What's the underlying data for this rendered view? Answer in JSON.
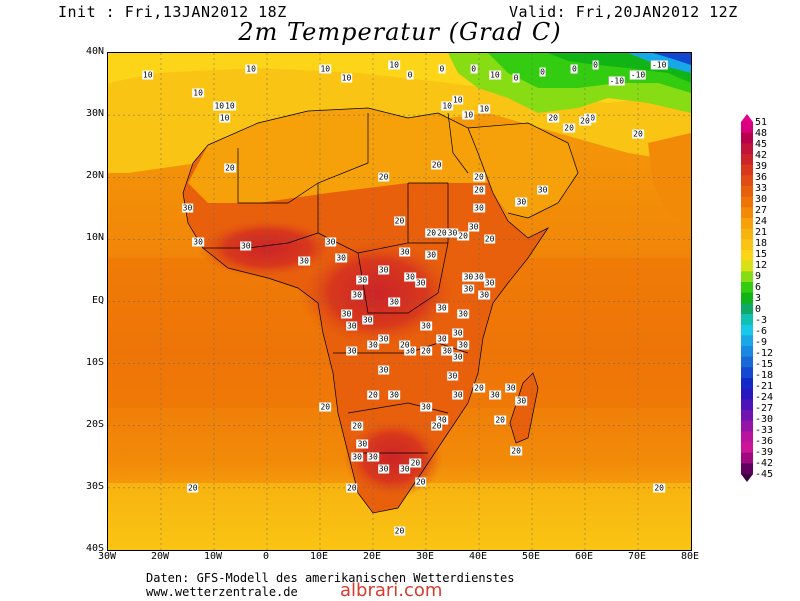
{
  "header": {
    "init": "Init : Fri,13JAN2012 18Z",
    "valid": "Valid: Fri,20JAN2012 12Z",
    "title": "2m Temperatur (Grad C)"
  },
  "axes": {
    "lat_labels": [
      "40N",
      "30N",
      "20N",
      "10N",
      "EQ",
      "10S",
      "20S",
      "30S",
      "40S"
    ],
    "lon_labels": [
      "30W",
      "20W",
      "10W",
      "0",
      "10E",
      "20E",
      "30E",
      "40E",
      "50E",
      "60E",
      "70E",
      "80E"
    ]
  },
  "colorbar": {
    "labels": [
      "51",
      "48",
      "45",
      "42",
      "39",
      "36",
      "33",
      "30",
      "27",
      "24",
      "21",
      "18",
      "15",
      "12",
      "9",
      "6",
      "3",
      "0",
      "-3",
      "-6",
      "-9",
      "-12",
      "-15",
      "-18",
      "-21",
      "-24",
      "-27",
      "-30",
      "-33",
      "-36",
      "-39",
      "-42",
      "-45"
    ],
    "colors": [
      "#d8007c",
      "#b8004c",
      "#c0143c",
      "#cc2428",
      "#d8381c",
      "#e04c14",
      "#e8600c",
      "#ee7408",
      "#f28a08",
      "#f6a00a",
      "#f8b40e",
      "#fac414",
      "#fcd418",
      "#d8e018",
      "#88dc14",
      "#34cc10",
      "#10b414",
      "#10a868",
      "#10c0b0",
      "#18c8e8",
      "#18a8e8",
      "#1888e0",
      "#1868d8",
      "#1448d0",
      "#1428c8",
      "#2818c0",
      "#4c14b8",
      "#7014b0",
      "#9414a8",
      "#b814a0",
      "#cc1498",
      "#a00880",
      "#600060"
    ]
  },
  "map_labels": [
    {
      "t": "10",
      "lon": -22.5,
      "lat": 36.5
    },
    {
      "t": "10",
      "lon": -3,
      "lat": 37.5
    },
    {
      "t": "10",
      "lon": 11,
      "lat": 37.5
    },
    {
      "t": "10",
      "lon": 15,
      "lat": 36
    },
    {
      "t": "10",
      "lon": -13,
      "lat": 33.5
    },
    {
      "t": "10",
      "lon": -7,
      "lat": 31.5
    },
    {
      "t": "10",
      "lon": -8,
      "lat": 29.5
    },
    {
      "t": "10",
      "lon": -9,
      "lat": 31.5
    },
    {
      "t": "10",
      "lon": 24,
      "lat": 38
    },
    {
      "t": "0",
      "lon": 27,
      "lat": 36.5
    },
    {
      "t": "0",
      "lon": 33,
      "lat": 37.5
    },
    {
      "t": "0",
      "lon": 39,
      "lat": 37.5
    },
    {
      "t": "10",
      "lon": 43,
      "lat": 36.5
    },
    {
      "t": "0",
      "lon": 47,
      "lat": 36
    },
    {
      "t": "0",
      "lon": 52,
      "lat": 37
    },
    {
      "t": "0",
      "lon": 58,
      "lat": 37.5
    },
    {
      "t": "0",
      "lon": 62,
      "lat": 38
    },
    {
      "t": "-10",
      "lon": 66,
      "lat": 35.5
    },
    {
      "t": "-10",
      "lon": 70,
      "lat": 36.5
    },
    {
      "t": "-10",
      "lon": 74,
      "lat": 38
    },
    {
      "t": "10",
      "lon": 34,
      "lat": 31.5
    },
    {
      "t": "10",
      "lon": 41,
      "lat": 31
    },
    {
      "t": "10",
      "lon": 36,
      "lat": 32.5
    },
    {
      "t": "10",
      "lon": 38,
      "lat": 30
    },
    {
      "t": "20",
      "lon": 54,
      "lat": 29.5
    },
    {
      "t": "10",
      "lon": 61,
      "lat": 29.5
    },
    {
      "t": "20",
      "lon": 57,
      "lat": 28
    },
    {
      "t": "20",
      "lon": 60,
      "lat": 29
    },
    {
      "t": "20",
      "lon": 70,
      "lat": 27
    },
    {
      "t": "20",
      "lon": 22,
      "lat": 20
    },
    {
      "t": "20",
      "lon": 32,
      "lat": 22
    },
    {
      "t": "20",
      "lon": 25,
      "lat": 13
    },
    {
      "t": "20",
      "lon": -7,
      "lat": 21.5
    },
    {
      "t": "30",
      "lon": -15,
      "lat": 15
    },
    {
      "t": "30",
      "lon": -13,
      "lat": 9.5
    },
    {
      "t": "30",
      "lon": -4,
      "lat": 9
    },
    {
      "t": "30",
      "lon": 12,
      "lat": 9.5
    },
    {
      "t": "30",
      "lon": 7,
      "lat": 6.5
    },
    {
      "t": "30",
      "lon": 14,
      "lat": 7
    },
    {
      "t": "30",
      "lon": 26,
      "lat": 8
    },
    {
      "t": "30",
      "lon": 22,
      "lat": 5
    },
    {
      "t": "30",
      "lon": 18,
      "lat": 3.5
    },
    {
      "t": "30",
      "lon": 31,
      "lat": 7.5
    },
    {
      "t": "20",
      "lon": 31,
      "lat": 11
    },
    {
      "t": "20",
      "lon": 33,
      "lat": 11
    },
    {
      "t": "30",
      "lon": 35,
      "lat": 11
    },
    {
      "t": "20",
      "lon": 37,
      "lat": 10.5
    },
    {
      "t": "30",
      "lon": 39,
      "lat": 12
    },
    {
      "t": "30",
      "lon": 40,
      "lat": 15
    },
    {
      "t": "20",
      "lon": 40,
      "lat": 18
    },
    {
      "t": "20",
      "lon": 40,
      "lat": 20
    },
    {
      "t": "30",
      "lon": 48,
      "lat": 16
    },
    {
      "t": "30",
      "lon": 52,
      "lat": 18
    },
    {
      "t": "20",
      "lon": 42,
      "lat": 10
    },
    {
      "t": "30",
      "lon": 24,
      "lat": 0
    },
    {
      "t": "30",
      "lon": 27,
      "lat": 4
    },
    {
      "t": "30",
      "lon": 29,
      "lat": 3
    },
    {
      "t": "30",
      "lon": 38,
      "lat": 4
    },
    {
      "t": "30",
      "lon": 40,
      "lat": 4
    },
    {
      "t": "30",
      "lon": 42,
      "lat": 3
    },
    {
      "t": "30",
      "lon": 38,
      "lat": 2
    },
    {
      "t": "30",
      "lon": 41,
      "lat": 1
    },
    {
      "t": "30",
      "lon": 33,
      "lat": -1
    },
    {
      "t": "30",
      "lon": 37,
      "lat": -2
    },
    {
      "t": "30",
      "lon": 36,
      "lat": -5
    },
    {
      "t": "30",
      "lon": 37,
      "lat": -7
    },
    {
      "t": "30",
      "lon": 33,
      "lat": -6
    },
    {
      "t": "30",
      "lon": 30,
      "lat": -4
    },
    {
      "t": "30",
      "lon": 27,
      "lat": -8
    },
    {
      "t": "30",
      "lon": 22,
      "lat": -6
    },
    {
      "t": "20",
      "lon": 26,
      "lat": -7
    },
    {
      "t": "20",
      "lon": 30,
      "lat": -8
    },
    {
      "t": "30",
      "lon": 36,
      "lat": -9
    },
    {
      "t": "30",
      "lon": 34,
      "lat": -8
    },
    {
      "t": "30",
      "lon": 20,
      "lat": -7
    },
    {
      "t": "30",
      "lon": 19,
      "lat": -3
    },
    {
      "t": "30",
      "lon": 15,
      "lat": -2
    },
    {
      "t": "30",
      "lon": 17,
      "lat": 1
    },
    {
      "t": "30",
      "lon": 16,
      "lat": -4
    },
    {
      "t": "30",
      "lon": 16,
      "lat": -8
    },
    {
      "t": "30",
      "lon": 22,
      "lat": -11
    },
    {
      "t": "30",
      "lon": 35,
      "lat": -12
    },
    {
      "t": "20",
      "lon": 40,
      "lat": -14
    },
    {
      "t": "20",
      "lon": 20,
      "lat": -15
    },
    {
      "t": "30",
      "lon": 24,
      "lat": -15
    },
    {
      "t": "30",
      "lon": 30,
      "lat": -17
    },
    {
      "t": "30",
      "lon": 33,
      "lat": -19
    },
    {
      "t": "20",
      "lon": 32,
      "lat": -20
    },
    {
      "t": "30",
      "lon": 36,
      "lat": -15
    },
    {
      "t": "30",
      "lon": 43,
      "lat": -15
    },
    {
      "t": "30",
      "lon": 46,
      "lat": -14
    },
    {
      "t": "30",
      "lon": 48,
      "lat": -16
    },
    {
      "t": "20",
      "lon": 44,
      "lat": -19
    },
    {
      "t": "20",
      "lon": 47,
      "lat": -24
    },
    {
      "t": "20",
      "lon": 11,
      "lat": -17
    },
    {
      "t": "20",
      "lon": 17,
      "lat": -20
    },
    {
      "t": "30",
      "lon": 18,
      "lat": -23
    },
    {
      "t": "30",
      "lon": 17,
      "lat": -25
    },
    {
      "t": "30",
      "lon": 20,
      "lat": -25
    },
    {
      "t": "30",
      "lon": 22,
      "lat": -27
    },
    {
      "t": "30",
      "lon": 26,
      "lat": -27
    },
    {
      "t": "20",
      "lon": 28,
      "lat": -26
    },
    {
      "t": "20",
      "lon": 29,
      "lat": -29
    },
    {
      "t": "20",
      "lon": 16,
      "lat": -30
    },
    {
      "t": "20",
      "lon": -14,
      "lat": -30
    },
    {
      "t": "20",
      "lon": 74,
      "lat": -30
    },
    {
      "t": "20",
      "lon": 25,
      "lat": -37
    }
  ]
}
